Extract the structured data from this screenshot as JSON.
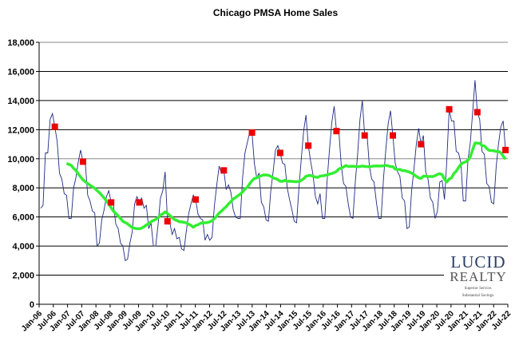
{
  "chart_data": {
    "type": "line",
    "title": "Chicago PMSA Home Sales",
    "xlabel": "",
    "ylabel": "",
    "ylim": [
      0,
      18000
    ],
    "yticks": [
      "0",
      "2,000",
      "4,000",
      "6,000",
      "8,000",
      "10,000",
      "12,000",
      "14,000",
      "16,000",
      "18,000"
    ],
    "xticks": [
      "Jan-06",
      "Jul-06",
      "Jan-07",
      "Jul-07",
      "Jan-08",
      "Jul-08",
      "Jan-09",
      "Jul-09",
      "Jan-10",
      "Jul-10",
      "Jan-11",
      "Jul-11",
      "Jan-12",
      "Jul-12",
      "Jan-13",
      "Jul-13",
      "Jan-14",
      "Jul-14",
      "Jan-15",
      "Jul-15",
      "Jan-16",
      "Jul-16",
      "Jan-17",
      "Jul-17",
      "Jan-18",
      "Jul-18",
      "Jan-19",
      "Jul-19",
      "Jan-20",
      "Jul-20",
      "Jan-21",
      "Jul-21",
      "Jan-22",
      "Jul-22"
    ],
    "grid": true,
    "legend": "none",
    "start_month": "Jan-06",
    "series": [
      {
        "kind": "monthly",
        "color": "#1f2a80",
        "values": [
          6600,
          6800,
          10400,
          10400,
          12700,
          13100,
          12200,
          11200,
          9000,
          8600,
          7600,
          7500,
          5900,
          5900,
          8000,
          8700,
          9800,
          10600,
          9800,
          9700,
          7500,
          7100,
          6400,
          6300,
          4000,
          4200,
          5800,
          6500,
          7400,
          7800,
          7000,
          6800,
          5500,
          5200,
          4200,
          4000,
          3000,
          3100,
          4200,
          5000,
          6900,
          7400,
          7000,
          7300,
          6600,
          6800,
          5200,
          5600,
          4000,
          4000,
          5500,
          7300,
          7800,
          9100,
          5700,
          5600,
          4800,
          5200,
          4500,
          4600,
          3800,
          3700,
          5000,
          6200,
          6900,
          7500,
          7200,
          6200,
          5900,
          5800,
          4400,
          4800,
          4400,
          4600,
          6800,
          8200,
          9500,
          9000,
          9200,
          7900,
          8200,
          7700,
          6500,
          6000,
          5900,
          5900,
          8700,
          10400,
          11100,
          11800,
          11800,
          9700,
          8700,
          9000,
          7000,
          6700,
          5800,
          5700,
          7800,
          9100,
          10600,
          10900,
          10400,
          9700,
          9600,
          8000,
          7200,
          6500,
          5700,
          5600,
          8000,
          10000,
          11900,
          13000,
          10900,
          9800,
          8900,
          7400,
          6900,
          7600,
          5900,
          5900,
          8500,
          10600,
          12500,
          13600,
          11900,
          11900,
          9600,
          8300,
          8100,
          6900,
          6000,
          5900,
          8400,
          10300,
          12700,
          14000,
          11600,
          11700,
          9500,
          8600,
          8400,
          7000,
          5900,
          5900,
          8600,
          10600,
          12400,
          13300,
          11600,
          9700,
          9100,
          8800,
          7300,
          7100,
          5200,
          5300,
          7800,
          9300,
          11000,
          12100,
          11000,
          11600,
          9100,
          8600,
          7300,
          7000,
          5900,
          6400,
          8400,
          8500,
          7200,
          9900,
          13400,
          12600,
          12600,
          10500,
          10400,
          9700,
          7100,
          7100,
          9900,
          11100,
          13200,
          15400,
          13200,
          12700,
          10500,
          10300,
          8300,
          8100,
          7000,
          6900,
          9400,
          11000,
          12200,
          12600,
          10600
        ]
      },
      {
        "kind": "12-month moving average",
        "color": "#33ee33"
      },
      {
        "kind": "july markers",
        "color": "#ee0000",
        "x": [
          "Jul-06",
          "Jul-07",
          "Jul-08",
          "Jul-09",
          "Jul-10",
          "Jul-11",
          "Jul-12",
          "Jul-13",
          "Jul-14",
          "Jul-15",
          "Jul-16",
          "Jul-17",
          "Jul-18",
          "Jul-19",
          "Jul-20",
          "Jul-21",
          "Jul-22"
        ],
        "values": [
          12200,
          9800,
          7000,
          7000,
          5700,
          7200,
          9200,
          11800,
          10400,
          10900,
          11900,
          11600,
          11600,
          11000,
          13400,
          13200,
          10600
        ]
      }
    ]
  },
  "logo": {
    "name": "LUCID",
    "sub": "REALTY",
    "tagline1": "Superior Service.",
    "tagline2": "Substantial Savings."
  }
}
